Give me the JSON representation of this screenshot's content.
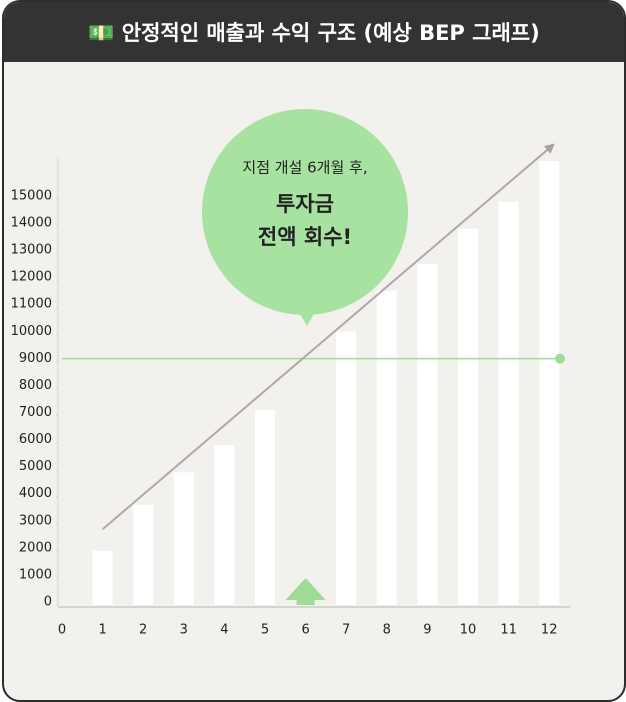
{
  "chart_data": {
    "type": "bar",
    "title": "💵 안정적인 매출과 수익 구조 (예상 BEP 그래프)",
    "x": [
      1,
      2,
      3,
      4,
      5,
      6,
      7,
      8,
      9,
      10,
      11,
      12
    ],
    "values": [
      2000,
      3700,
      4900,
      5900,
      7200,
      null,
      10100,
      11600,
      12600,
      13900,
      14900,
      16400
    ],
    "color": "#ffffff",
    "xlim": [
      0,
      12.3
    ],
    "xticks": [
      0,
      1,
      2,
      3,
      4,
      5,
      6,
      7,
      8,
      9,
      10,
      11,
      12
    ],
    "ylim": [
      0,
      16500
    ],
    "yticks": [
      0,
      1000,
      2000,
      3000,
      4000,
      5000,
      6000,
      7000,
      8000,
      9000,
      10000,
      11000,
      12000,
      13000,
      14000,
      15000
    ],
    "bep_line": {
      "value": 9100,
      "color": "#9edc96"
    },
    "trend": {
      "x": [
        1,
        12.1
      ],
      "values": [
        2800,
        17000
      ],
      "color": "#b0a8a8"
    },
    "marker_x": 6,
    "callout": {
      "line1": "지점 개설 6개월 후,",
      "line2": "투자금",
      "line3": "전액 회수!",
      "color": "#a8e2a0"
    }
  }
}
